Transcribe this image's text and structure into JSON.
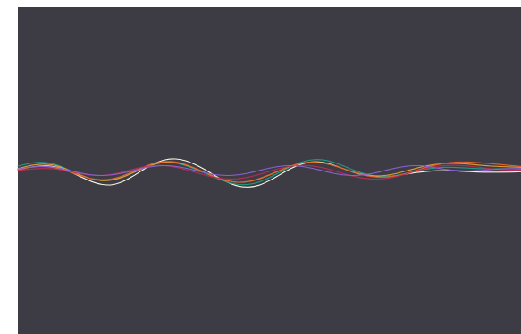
{
  "chart_data": {
    "type": "line",
    "background_color": "#3d3c45",
    "page_background_color": "#ffffff",
    "grid": false,
    "legend": "none",
    "x": [
      0,
      0.25,
      0.5,
      0.75,
      1,
      1.25,
      1.5,
      1.75,
      2,
      2.25,
      2.5,
      2.75,
      3,
      3.25,
      3.5,
      3.75,
      4,
      4.25,
      4.5,
      4.75,
      5,
      5.25,
      5.5,
      5.75,
      6,
      6.25,
      6.5,
      6.75,
      7,
      7.25,
      7.5,
      7.75,
      8,
      8.25,
      8.5,
      8.75,
      9,
      9.25,
      9.5,
      9.75,
      10,
      10.25,
      10.5,
      10.75,
      11,
      11.25,
      11.5,
      11.75,
      12
    ],
    "xlim": [
      0,
      12
    ],
    "ylim": [
      -10,
      10
    ],
    "series": [
      {
        "color": "#fbf7e6",
        "values": [
          0.05,
          0.18,
          0.27,
          0.28,
          0.16,
          -0.08,
          -0.38,
          -0.66,
          -0.84,
          -0.86,
          -0.67,
          -0.33,
          0.07,
          0.42,
          0.65,
          0.71,
          0.6,
          0.34,
          0.0,
          -0.38,
          -0.71,
          -0.94,
          -1.0,
          -0.89,
          -0.61,
          -0.25,
          0.11,
          0.38,
          0.52,
          0.51,
          0.36,
          0.13,
          -0.1,
          -0.27,
          -0.36,
          -0.37,
          -0.31,
          -0.22,
          -0.12,
          -0.05,
          -0.01,
          -0.01,
          -0.03,
          -0.06,
          -0.09,
          -0.1,
          -0.1,
          -0.09,
          -0.07
        ]
      },
      {
        "color": "#1a9e86",
        "values": [
          0.27,
          0.42,
          0.5,
          0.46,
          0.28,
          0.0,
          -0.28,
          -0.49,
          -0.58,
          -0.52,
          -0.33,
          -0.06,
          0.2,
          0.4,
          0.49,
          0.46,
          0.3,
          0.07,
          -0.2,
          -0.48,
          -0.71,
          -0.84,
          -0.84,
          -0.7,
          -0.43,
          -0.1,
          0.23,
          0.5,
          0.65,
          0.66,
          0.53,
          0.3,
          0.04,
          -0.18,
          -0.32,
          -0.36,
          -0.3,
          -0.18,
          -0.03,
          0.09,
          0.17,
          0.2,
          0.18,
          0.15,
          0.12,
          0.11,
          0.11,
          0.11,
          0.09
        ]
      },
      {
        "color": "#e2a137",
        "values": [
          0.12,
          0.28,
          0.38,
          0.37,
          0.23,
          -0.01,
          -0.28,
          -0.5,
          -0.61,
          -0.57,
          -0.4,
          -0.13,
          0.15,
          0.38,
          0.5,
          0.49,
          0.35,
          0.11,
          -0.16,
          -0.43,
          -0.62,
          -0.71,
          -0.67,
          -0.51,
          -0.27,
          0.0,
          0.26,
          0.44,
          0.52,
          0.48,
          0.33,
          0.13,
          -0.08,
          -0.24,
          -0.32,
          -0.3,
          -0.19,
          -0.03,
          0.14,
          0.29,
          0.39,
          0.44,
          0.43,
          0.39,
          0.33,
          0.28,
          0.25,
          0.22,
          0.2
        ]
      },
      {
        "color": "#e3632d",
        "values": [
          0.04,
          0.17,
          0.24,
          0.22,
          0.1,
          -0.1,
          -0.32,
          -0.49,
          -0.56,
          -0.5,
          -0.32,
          -0.06,
          0.22,
          0.44,
          0.55,
          0.53,
          0.37,
          0.12,
          -0.17,
          -0.44,
          -0.63,
          -0.71,
          -0.66,
          -0.49,
          -0.25,
          0.02,
          0.26,
          0.44,
          0.51,
          0.47,
          0.33,
          0.13,
          -0.09,
          -0.27,
          -0.38,
          -0.4,
          -0.33,
          -0.18,
          0.01,
          0.2,
          0.36,
          0.47,
          0.52,
          0.52,
          0.48,
          0.43,
          0.37,
          0.31,
          0.25
        ]
      },
      {
        "color": "#b72d53",
        "values": [
          0.0,
          0.07,
          0.12,
          0.12,
          0.06,
          -0.06,
          -0.19,
          -0.28,
          -0.3,
          -0.23,
          -0.09,
          0.08,
          0.22,
          0.3,
          0.3,
          0.21,
          0.06,
          -0.12,
          -0.3,
          -0.44,
          -0.51,
          -0.5,
          -0.4,
          -0.24,
          -0.05,
          0.13,
          0.26,
          0.32,
          0.29,
          0.18,
          0.02,
          -0.17,
          -0.34,
          -0.47,
          -0.52,
          -0.49,
          -0.38,
          -0.22,
          -0.03,
          0.14,
          0.26,
          0.32,
          0.32,
          0.27,
          0.2,
          0.12,
          0.06,
          0.03,
          0.02
        ]
      },
      {
        "color": "#8a63d2",
        "values": [
          0.1,
          0.2,
          0.25,
          0.24,
          0.15,
          0.0,
          -0.15,
          -0.26,
          -0.3,
          -0.26,
          -0.15,
          0.0,
          0.15,
          0.26,
          0.3,
          0.26,
          0.15,
          0.0,
          -0.15,
          -0.26,
          -0.3,
          -0.26,
          -0.15,
          0.0,
          0.15,
          0.26,
          0.3,
          0.26,
          0.15,
          0.0,
          -0.15,
          -0.26,
          -0.3,
          -0.26,
          -0.15,
          0.0,
          0.15,
          0.26,
          0.3,
          0.26,
          0.15,
          0.05,
          0.0,
          -0.02,
          0.0,
          0.05,
          0.1,
          0.12,
          0.12
        ]
      }
    ]
  }
}
